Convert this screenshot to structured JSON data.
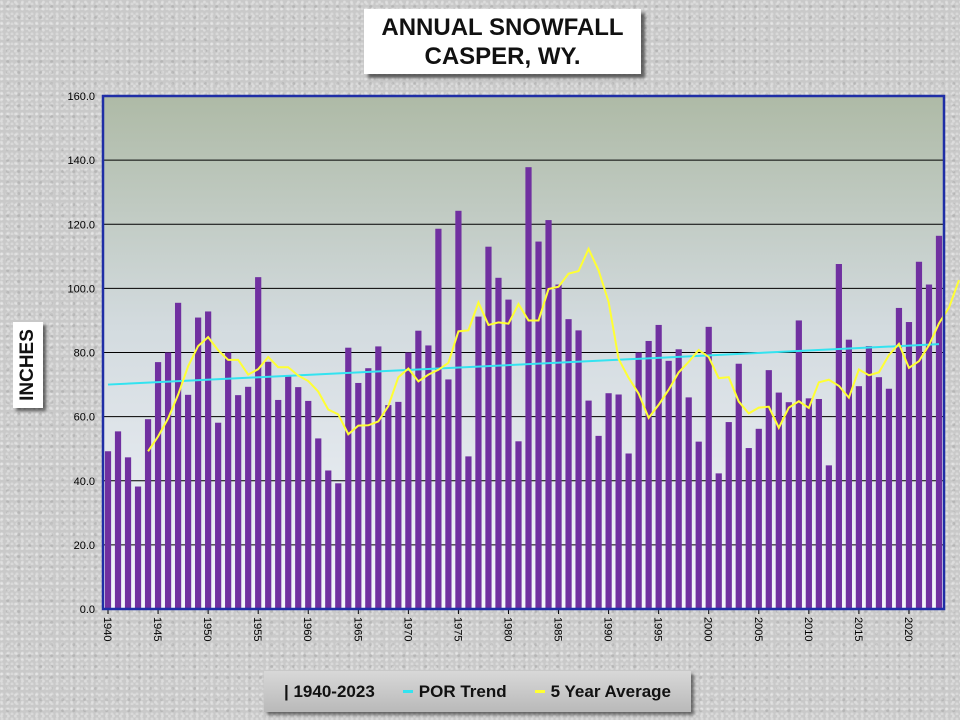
{
  "chart_data": {
    "type": "bar",
    "title": [
      "ANNUAL SNOWFALL",
      "CASPER, WY."
    ],
    "ylabel": "INCHES",
    "ylim": [
      0,
      160
    ],
    "yticks": [
      "0.0",
      "20.0",
      "40.0",
      "60.0",
      "80.0",
      "100.0",
      "120.0",
      "140.0",
      "160.0"
    ],
    "xtick_labels": [
      "1940",
      "1945",
      "1950",
      "1955",
      "1960",
      "1965",
      "1970",
      "1975",
      "1980",
      "1985",
      "1990",
      "1995",
      "2000",
      "2005",
      "2010",
      "2015",
      "2020"
    ],
    "grid": "horizontal",
    "legend_position": "bottom",
    "colors": {
      "bars": "#7030a0",
      "trend": "#33e3f0",
      "average": "#ffff33",
      "border": "#1f2ea6"
    },
    "years": [
      1940,
      1941,
      1942,
      1943,
      1944,
      1945,
      1946,
      1947,
      1948,
      1949,
      1950,
      1951,
      1952,
      1953,
      1954,
      1955,
      1956,
      1957,
      1958,
      1959,
      1960,
      1961,
      1962,
      1963,
      1964,
      1965,
      1966,
      1967,
      1968,
      1969,
      1970,
      1971,
      1972,
      1973,
      1974,
      1975,
      1976,
      1977,
      1978,
      1979,
      1980,
      1981,
      1982,
      1983,
      1984,
      1985,
      1986,
      1987,
      1988,
      1989,
      1990,
      1991,
      1992,
      1993,
      1994,
      1995,
      1996,
      1997,
      1998,
      1999,
      2000,
      2001,
      2002,
      2003,
      2004,
      2005,
      2006,
      2007,
      2008,
      2009,
      2010,
      2011,
      2012,
      2013,
      2014,
      2015,
      2016,
      2017,
      2018,
      2019,
      2020,
      2021,
      2022,
      2023
    ],
    "series": [
      {
        "name": "1940-2023",
        "values": [
          49.2,
          55.4,
          47.3,
          38.2,
          59.2,
          77.0,
          80.0,
          95.5,
          66.8,
          90.9,
          92.8,
          58.1,
          80.0,
          66.7,
          69.3,
          103.5,
          77.1,
          65.2,
          72.8,
          69.2,
          64.9,
          53.2,
          43.2,
          39.2,
          81.5,
          70.5,
          75.1,
          81.9,
          63.6,
          64.6,
          80.0,
          86.8,
          82.2,
          118.6,
          71.6,
          124.2,
          47.6,
          91.2,
          113.0,
          103.3,
          96.5,
          52.3,
          137.8,
          114.6,
          121.3,
          101.2,
          90.4,
          86.9,
          65.0,
          54.0,
          67.3,
          66.9,
          48.5,
          80.0,
          83.6,
          88.6,
          77.4,
          81.0,
          66.0,
          52.2,
          88.0,
          42.3,
          58.3,
          76.5,
          50.2,
          56.2,
          74.5,
          67.5,
          64.5,
          90.0,
          65.7,
          65.5,
          44.8,
          107.6,
          84.0,
          69.5,
          82.0,
          72.3,
          68.7,
          93.9,
          89.5,
          108.3,
          101.2,
          116.4
        ]
      },
      {
        "name": "POR Trend",
        "x": [
          1940,
          2023
        ],
        "values": [
          70.0,
          82.6
        ]
      },
      {
        "name": "5 Year Average",
        "x_start": 1944,
        "values": [
          49.2,
          53.8,
          59.4,
          66.8,
          75.7,
          82.0,
          84.8,
          80.7,
          77.7,
          77.7,
          73.1,
          74.8,
          78.6,
          75.4,
          75.4,
          72.8,
          71.1,
          67.8,
          62.2,
          60.7,
          54.5,
          57.2,
          57.3,
          58.5,
          63.3,
          72.3,
          75.0,
          71.0,
          73.1,
          74.6,
          76.8,
          86.6,
          86.9,
          95.6,
          88.6,
          89.4,
          89.0,
          95.1,
          90.0,
          90.0,
          99.8,
          100.5,
          104.6,
          105.4,
          112.3,
          105.6,
          95.8,
          78.0,
          72.1,
          67.2,
          59.6,
          63.7,
          68.4,
          73.8,
          77.1,
          80.8,
          78.6,
          72.0,
          72.3,
          64.7,
          61.0,
          62.8,
          63.1,
          56.5,
          62.8,
          64.8,
          62.7,
          70.7,
          71.5,
          69.6,
          65.9,
          74.7,
          72.9,
          73.8,
          79.2,
          82.7,
          75.2,
          77.3,
          82.3,
          89.1,
          94.0,
          102.6
        ]
      }
    ]
  },
  "legend": {
    "item1": "| 1940-2023",
    "item2": "POR Trend",
    "item3": "5 Year Average"
  }
}
